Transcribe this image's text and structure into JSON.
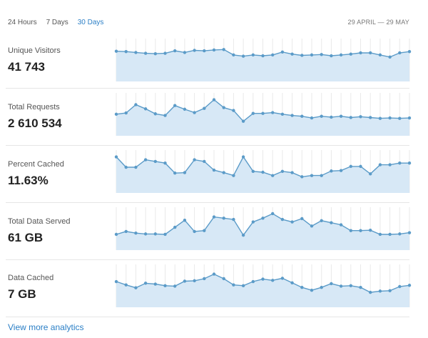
{
  "tabs": [
    {
      "label": "24 Hours",
      "active": false
    },
    {
      "label": "7 Days",
      "active": false
    },
    {
      "label": "30 Days",
      "active": true
    }
  ],
  "date_range": "29 APRIL — 29 MAY",
  "colors": {
    "accent": "#2b7fc6",
    "line": "#5b9bc8",
    "fill": "#d7e8f6",
    "grid": "#e9e9e9"
  },
  "metrics": [
    {
      "label": "Unique Visitors",
      "value": "41 743",
      "trend": [
        0.73,
        0.72,
        0.7,
        0.68,
        0.67,
        0.68,
        0.74,
        0.7,
        0.75,
        0.74,
        0.76,
        0.77,
        0.64,
        0.61,
        0.64,
        0.62,
        0.64,
        0.71,
        0.66,
        0.63,
        0.64,
        0.65,
        0.62,
        0.64,
        0.66,
        0.69,
        0.69,
        0.64,
        0.59,
        0.69,
        0.72
      ]
    },
    {
      "label": "Total Requests",
      "value": "2 610 534",
      "trend": [
        0.52,
        0.55,
        0.75,
        0.65,
        0.53,
        0.49,
        0.73,
        0.64,
        0.56,
        0.66,
        0.87,
        0.68,
        0.61,
        0.35,
        0.54,
        0.54,
        0.56,
        0.52,
        0.49,
        0.47,
        0.43,
        0.47,
        0.45,
        0.47,
        0.44,
        0.46,
        0.44,
        0.42,
        0.43,
        0.42,
        0.43
      ]
    },
    {
      "label": "Percent Cached",
      "value": "11.63%",
      "trend": [
        0.87,
        0.62,
        0.62,
        0.8,
        0.76,
        0.72,
        0.48,
        0.49,
        0.8,
        0.76,
        0.55,
        0.49,
        0.42,
        0.87,
        0.52,
        0.5,
        0.42,
        0.52,
        0.49,
        0.39,
        0.42,
        0.42,
        0.53,
        0.54,
        0.64,
        0.64,
        0.46,
        0.68,
        0.68,
        0.72,
        0.72
      ]
    },
    {
      "label": "Total Data Served",
      "value": "61 GB",
      "trend": [
        0.38,
        0.45,
        0.41,
        0.39,
        0.39,
        0.38,
        0.55,
        0.72,
        0.45,
        0.47,
        0.8,
        0.77,
        0.74,
        0.36,
        0.68,
        0.77,
        0.88,
        0.74,
        0.68,
        0.76,
        0.58,
        0.71,
        0.66,
        0.61,
        0.47,
        0.47,
        0.48,
        0.38,
        0.38,
        0.39,
        0.42
      ]
    },
    {
      "label": "Data Cached",
      "value": "7 GB",
      "trend": [
        0.62,
        0.54,
        0.47,
        0.58,
        0.56,
        0.52,
        0.51,
        0.63,
        0.64,
        0.69,
        0.8,
        0.69,
        0.54,
        0.52,
        0.62,
        0.68,
        0.65,
        0.7,
        0.59,
        0.48,
        0.41,
        0.48,
        0.57,
        0.51,
        0.52,
        0.48,
        0.36,
        0.39,
        0.4,
        0.5,
        0.53
      ]
    }
  ],
  "footer_link": "View more analytics"
}
